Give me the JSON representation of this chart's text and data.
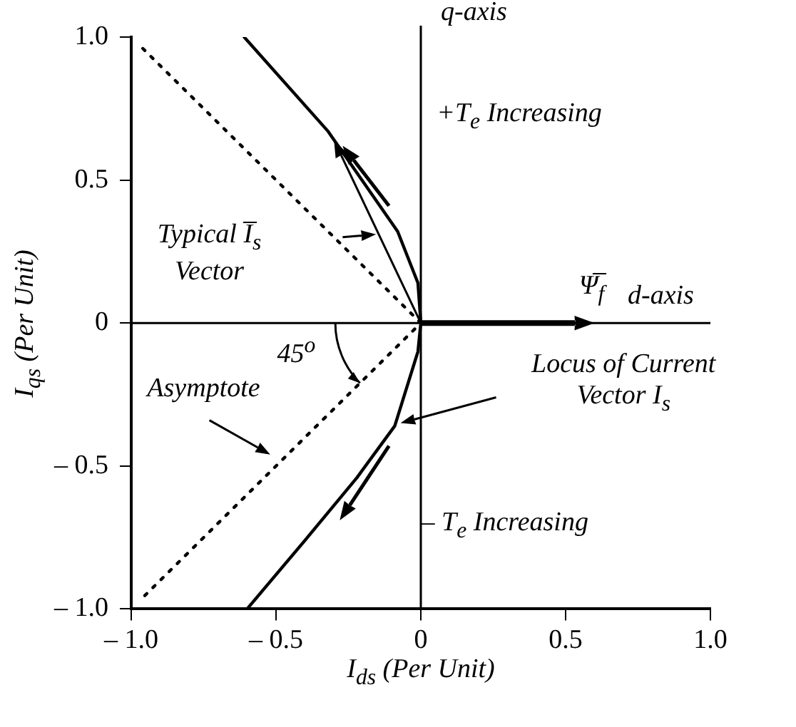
{
  "chart_data": {
    "type": "line",
    "xlabel": "I$_{ds}$ (Per Unit)",
    "ylabel": "I$_{qs}$ (Per Unit)",
    "series": [
      {
        "color": "#000000",
        "x": [
          -0.61,
          -0.32,
          -0.08,
          -0.01,
          0,
          -0.01,
          -0.09,
          -0.22,
          -0.4,
          -0.6
        ],
        "values": [
          1.0,
          0.67,
          0.32,
          0.14,
          0,
          -0.1,
          -0.36,
          -0.54,
          -0.76,
          -1.0
        ]
      },
      {
        "color": "#000000",
        "line_style": "dotted",
        "x": [
          -0.96,
          0,
          -0.96
        ],
        "values": [
          0.96,
          0,
          -0.96
        ]
      }
    ],
    "xlim": [
      -1,
      1
    ],
    "ylim": [
      -1,
      1
    ],
    "xticks": [
      {
        "value": -1,
        "label": "– 1.0"
      },
      {
        "value": -0.5,
        "label": "– 0.5"
      },
      0,
      {
        "value": 0.5,
        "label": "0.5"
      },
      {
        "value": 1,
        "label": "1.0"
      }
    ],
    "yticks": [
      {
        "value": -1,
        "label": "– 1.0"
      },
      {
        "value": -0.5,
        "label": "– 0.5"
      },
      0,
      {
        "value": 0.5,
        "label": "0.5"
      },
      {
        "value": 1,
        "label": "1.0"
      }
    ],
    "ref_lines": [
      {
        "axis": "x",
        "value": 0,
        "label": "q-axis"
      },
      {
        "axis": "y",
        "value": 0,
        "label": "d-axis"
      }
    ],
    "annotations": [
      "+T$_{e}$ Increasing",
      "Typical I̅$_{s}$\nVector",
      "Ψ̅$_{f}$",
      {
        "text": "45$^{o}$",
        "x": -0.21,
        "y": -0.21
      },
      "Asymptote",
      "Locus of Current\nVector I$_{s}$",
      "– T$_{e}$ Increasing"
    ],
    "grid": false,
    "legend": false,
    "marker": "none"
  }
}
